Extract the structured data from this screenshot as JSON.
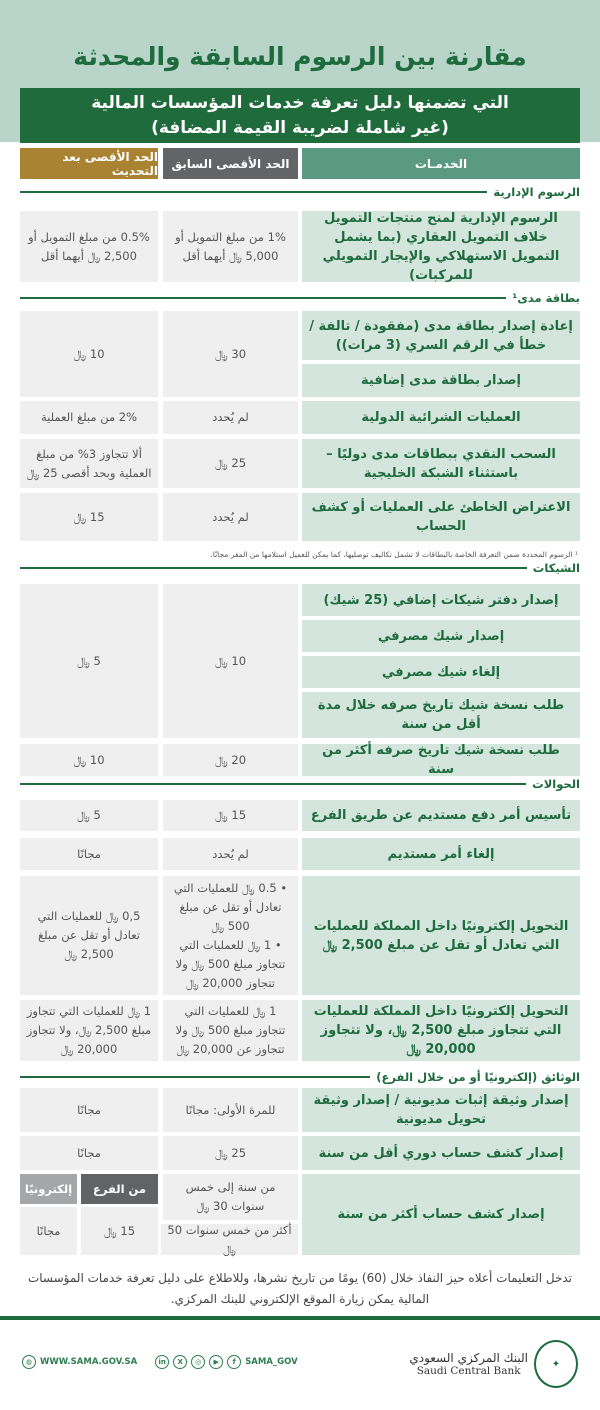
{
  "title": "مقارنة بين الرسوم السابقة والمحدثة",
  "subtitle_line1": "التي تضمنها دليل تعرفة خدمات المؤسسات المالية",
  "subtitle_line2": "(غير شاملة لضريبة القيمة المضافة)",
  "headers": {
    "services": "الخدمـات",
    "previous": "الحد الأقصى السابق",
    "updated": "الحد الأقصى بعد التحديث"
  },
  "colors": {
    "green": "#1e6b3e",
    "services_header": "#5a9a82",
    "previous_header": "#636466",
    "updated_header": "#a98232",
    "service_cell": "#d3e5dc",
    "value_cell": "#efeff0"
  },
  "sections": {
    "admin": "الرسوم الإدارية",
    "mada": "بطاقة مدى¹",
    "checks": "الشيكات",
    "transfers": "الحوالات",
    "documents": "الوثائق (إلكترونيًا أو من خلال الفرع)"
  },
  "admin": {
    "service": "الرسوم الإدارية لمنح منتجات التمويل خلاف التمويل العقاري (بما يشمل التمويل الاستهلاكي والإيجار التمويلي للمركبات)",
    "previous": "1% من مبلغ التمويل أو 5,000 ﷼ أيهما أقل",
    "updated": "0.5% من مبلغ التمويل أو 2,500 ﷼ أيهما أقل"
  },
  "mada": {
    "reissue": "إعادة إصدار بطاقة مدى (مفقودة / تالفة / خطأ في الرقم السري (3 مرات))",
    "additional": "إصدار بطاقة مدى إضافية",
    "cards_previous": "30 ﷼",
    "cards_updated": "10 ﷼",
    "intl": "العمليات الشرائية الدولية",
    "intl_previous": "لم يُحدد",
    "intl_updated": "2% من مبلغ العملية",
    "cash": "السحب النقدي ببطاقات مدى دوليًا – باستثناء الشبكة الخليجية",
    "cash_previous": "25 ﷼",
    "cash_updated": "ألا تتجاوز 3% من مبلغ العملية وبحد أقصى 25 ﷼",
    "dispute": "الاعتراض الخاطئ على العمليات أو كشف الحساب",
    "dispute_previous": "لم يُحدد",
    "dispute_updated": "15 ﷼",
    "footnote": "¹ الرسوم المحددة ضمن التعرفة الخاصة بالبطاقات لا تشمل تكاليف توصليها، كما يمكن للعميل استلامها من المقر مجانًا."
  },
  "checks": {
    "book": "إصدار دفتر شيكات إضافي (25 شيك)",
    "bank_check": "إصدار شيك مصرفي",
    "cancel": "إلغاء شيك مصرفي",
    "copy_recent": "طلب نسخة شيك تاريخ صرفه خلال مدة أقل من سنة",
    "group_previous": "10 ﷼",
    "group_updated": "5 ﷼",
    "copy_old": "طلب نسخة شيك تاريخ صرفه أكثر من سنة",
    "copy_old_previous": "20 ﷼",
    "copy_old_updated": "10 ﷼"
  },
  "transfers": {
    "standing": "تأسيس أمر دفع مستديم عن طريق الفرع",
    "standing_previous": "15 ﷼",
    "standing_updated": "5 ﷼",
    "cancel": "إلغاء أمر مستديم",
    "cancel_previous": "لم يُحدد",
    "cancel_updated": "مجانًا",
    "small": "التحويل إلكترونيًا داخل المملكة للعمليات التي تعادل أو تقل عن مبلغ 2,500 ﷼",
    "small_previous_1": "• 0.5 ﷼ للعمليات التي تعادل أو تقل عن مبلغ 500 ﷼",
    "small_previous_2": "• 1 ﷼ للعمليات التي تتجاوز مبلغ 500 ﷼ ولا تتجاوز 20,000 ﷼",
    "small_updated": "0,5 ﷼ للعمليات التي تعادل أو تقل عن مبلغ 2,500 ﷼",
    "large": "التحويل إلكترونيًا داخل المملكة للعمليات التي تتجاوز مبلغ 2,500 ﷼، ولا تتجاوز 20,000 ﷼",
    "large_previous": "1 ﷼ للعمليات التي تتجاوز مبلغ 500 ﷼ ولا تتجاوز عن 20,000 ﷼",
    "large_updated": "1 ﷼ للعمليات التي تتجاوز مبلغ 2,500 ﷼، ولا تتجاوز 20,000 ﷼"
  },
  "documents": {
    "debt": "إصدار وثيقة إثبات مديونية / إصدار وثيقة تحويل مديونية",
    "debt_previous": "للمرة الأولى: مجانًا",
    "debt_updated": "مجانًا",
    "periodic": "إصدار كشف حساب دوري أقل من سنة",
    "periodic_previous": "25 ﷼",
    "periodic_updated": "مجانًا",
    "old": "إصدار كشف حساب أكثر من سنة",
    "old_previous_1": "من سنة إلى خمس سنوات 30 ﷼",
    "old_previous_2": "أكثر من خمس سنوات 50 ﷼",
    "branch_label": "من الفرع",
    "online_label": "إلكترونيًا",
    "branch_value": "15 ﷼",
    "online_value": "مجانًا"
  },
  "note": "تدخل التعليمات أعلاه حيز النفاذ خلال (60) يومًا من تاريخ نشرها، وللاطلاع على دليل تعرفة خدمات المؤسسات المالية يمكن زيارة الموقع الإلكتروني للبنك المركزي.",
  "footer": {
    "website": "WWW.SAMA.GOV.SA",
    "handle": "SAMA_GOV",
    "social_icons": [
      "linkedin-icon",
      "x-icon",
      "instagram-icon",
      "youtube-icon",
      "facebook-icon"
    ],
    "bank_name_ar": "البنك المركزي السعودي",
    "bank_name_en": "Saudi Central Bank"
  }
}
